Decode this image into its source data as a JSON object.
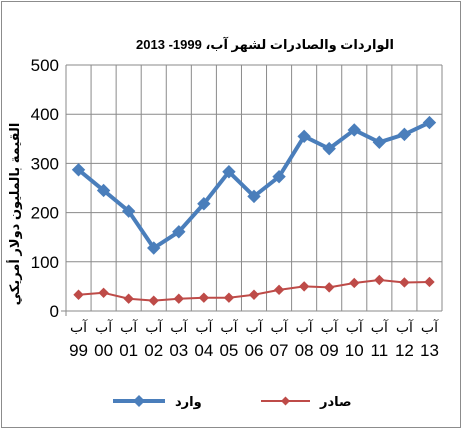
{
  "chart_data": {
    "type": "line",
    "title": "الواردات والصادرات لشهر آب،  1999- 2013",
    "ylabel": "القيمة بالمليون دولار أمريكي",
    "xlabel": "",
    "ylim": [
      0,
      500
    ],
    "yticks": [
      "0",
      "100",
      "200",
      "300",
      "400",
      "500"
    ],
    "grid": true,
    "legend_position": "bottom",
    "x_month": "آب",
    "categories": [
      "99",
      "00",
      "01",
      "02",
      "03",
      "04",
      "05",
      "06",
      "07",
      "08",
      "09",
      "10",
      "11",
      "12",
      "13"
    ],
    "series": [
      {
        "name": "وارد",
        "color": "#4a7ebb",
        "marker": "diamond",
        "values": [
          287,
          245,
          203,
          128,
          161,
          218,
          283,
          233,
          273,
          355,
          330,
          368,
          343,
          359,
          383
        ]
      },
      {
        "name": "صادر",
        "color": "#be4b48",
        "marker": "diamond",
        "values": [
          33,
          37,
          25,
          21,
          25,
          27,
          27,
          33,
          43,
          50,
          48,
          57,
          63,
          58,
          59
        ]
      }
    ]
  }
}
